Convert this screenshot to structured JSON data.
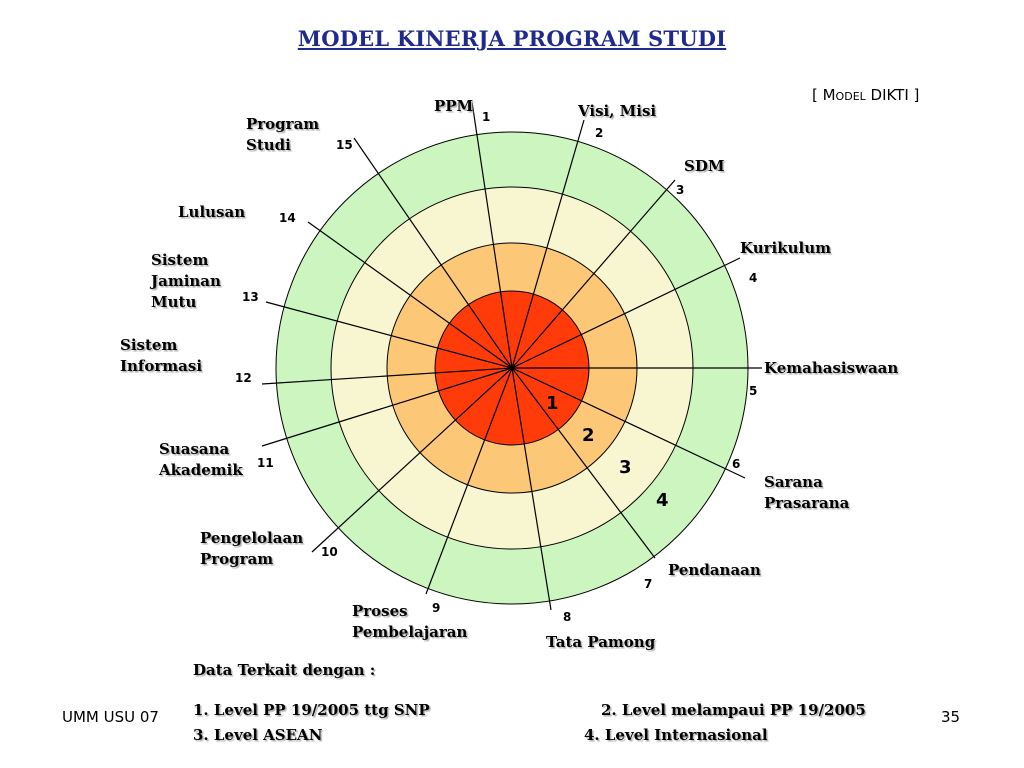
{
  "title": "MODEL KINERJA PROGRAM STUDI",
  "model_tag": "[ Model DIKTI ]",
  "colors": {
    "title": "#1f2a8c",
    "ring_4": "#ccf5c0",
    "ring_3": "#f7f6d1",
    "ring_2": "#fcc878",
    "ring_1": "#ff3b0a"
  },
  "spokes": [
    {
      "num": "1",
      "label": "PPM"
    },
    {
      "num": "2",
      "label": "Visi, Misi"
    },
    {
      "num": "3",
      "label": "SDM"
    },
    {
      "num": "4",
      "label": "Kurikulum"
    },
    {
      "num": "5",
      "label": "Kemahasiswaan"
    },
    {
      "num": "6",
      "label_lines": [
        "Sarana",
        "Prasarana"
      ]
    },
    {
      "num": "7",
      "label": "Pendanaan"
    },
    {
      "num": "8",
      "label": "Tata Pamong"
    },
    {
      "num": "9",
      "label_lines": [
        "Proses",
        "Pembelajaran"
      ]
    },
    {
      "num": "10",
      "label_lines": [
        "Pengelolaan",
        "Program"
      ]
    },
    {
      "num": "11",
      "label_lines": [
        "Suasana",
        "Akademik"
      ]
    },
    {
      "num": "12",
      "label_lines": [
        "Sistem",
        "Informasi"
      ]
    },
    {
      "num": "13",
      "label_lines": [
        "Sistem",
        "Jaminan",
        "Mutu"
      ]
    },
    {
      "num": "14",
      "label": "Lulusan"
    },
    {
      "num": "15",
      "label_lines": [
        "Program",
        "Studi"
      ]
    }
  ],
  "levels": [
    "1",
    "2",
    "3",
    "4"
  ],
  "notes": {
    "heading": "Data Terkait dengan  :",
    "level1": "1. Level PP 19/2005 ttg SNP",
    "level2": "2. Level melampaui PP 19/2005",
    "level3": "3. Level ASEAN",
    "level4": "4. Level Internasional"
  },
  "footer": {
    "left": "UMM USU 07",
    "page": "35"
  }
}
